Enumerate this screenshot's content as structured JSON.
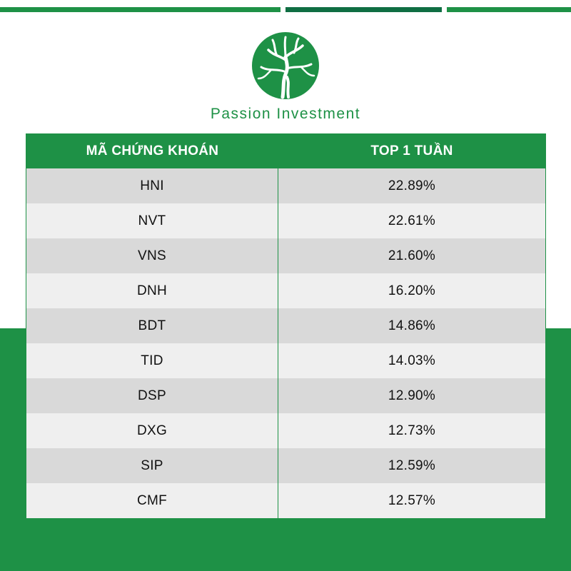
{
  "brand": {
    "name": "Passion Investment",
    "primary_color": "#1e9146",
    "dark_color": "#0f6e43",
    "logo_icon": "tree-icon"
  },
  "table": {
    "headers": [
      "MÃ CHỨNG KHOÁN",
      "TOP 1 TUẦN"
    ],
    "rows": [
      {
        "code": "HNI",
        "value": "22.89%"
      },
      {
        "code": "NVT",
        "value": "22.61%"
      },
      {
        "code": "VNS",
        "value": "21.60%"
      },
      {
        "code": "DNH",
        "value": "16.20%"
      },
      {
        "code": "BDT",
        "value": "14.86%"
      },
      {
        "code": "TID",
        "value": "14.03%"
      },
      {
        "code": "DSP",
        "value": "12.90%"
      },
      {
        "code": "DXG",
        "value": "12.73%"
      },
      {
        "code": "SIP",
        "value": "12.59%"
      },
      {
        "code": "CMF",
        "value": "12.57%"
      }
    ]
  }
}
